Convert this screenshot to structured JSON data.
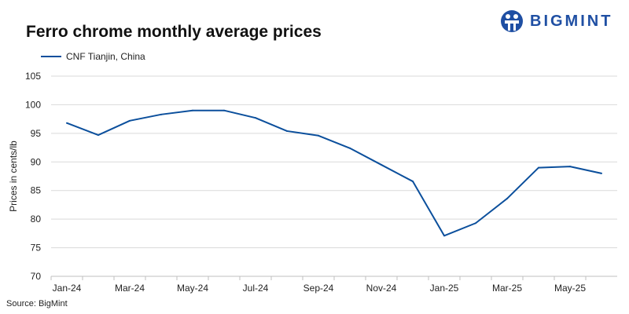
{
  "brand": {
    "name": "BIGMINT",
    "color": "#1f4fa3"
  },
  "source": "Source: BigMint",
  "chart_data": {
    "type": "line",
    "title": "Ferro chrome monthly average prices",
    "ylabel": "Prices in cents/lb",
    "xlabel": "",
    "ylim": [
      70,
      105
    ],
    "yticks": [
      70,
      75,
      80,
      85,
      90,
      95,
      100,
      105
    ],
    "grid": true,
    "legend_position": "top-left",
    "categories": [
      "Jan-24",
      "Feb-24",
      "Mar-24",
      "Apr-24",
      "May-24",
      "Jun-24",
      "Jul-24",
      "Aug-24",
      "Sep-24",
      "Oct-24",
      "Nov-24",
      "Dec-24",
      "Jan-25",
      "Feb-25",
      "Mar-25",
      "Apr-25",
      "May-25",
      "Jun-25"
    ],
    "xtick_labels": [
      "Jan-24",
      "",
      "Mar-24",
      "",
      "May-24",
      "",
      "Jul-24",
      "",
      "Sep-24",
      "",
      "Nov-24",
      "",
      "Jan-25",
      "",
      "Mar-25",
      "",
      "May-25",
      ""
    ],
    "series": [
      {
        "name": "CNF Tianjin, China",
        "color": "#0b4f9c",
        "values": [
          96.8,
          94.7,
          97.2,
          98.3,
          99.0,
          99.0,
          97.7,
          95.4,
          94.6,
          92.4,
          89.5,
          86.6,
          77.1,
          79.3,
          83.6,
          89.0,
          89.2,
          88.0
        ]
      }
    ]
  }
}
